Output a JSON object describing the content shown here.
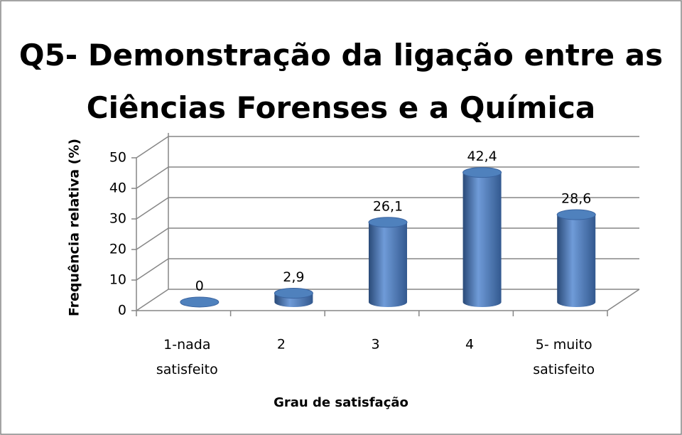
{
  "chart_data": {
    "type": "bar",
    "title": "Q5- Demonstração da ligação entre as\nCiências Forenses e a Química",
    "x_label": "Grau de satisfação",
    "y_label": "Frequência relativa (%)",
    "categories": [
      "1-nada\nsatisfeito",
      "2",
      "3",
      "4",
      "5- muito\nsatisfeito"
    ],
    "values": [
      0,
      2.9,
      26.1,
      42.4,
      28.6
    ],
    "value_labels": [
      "0",
      "2,9",
      "26,1",
      "42,4",
      "28,6"
    ],
    "color": "#4f81bd",
    "ylim": [
      0,
      50
    ],
    "yticks": [
      0,
      10,
      20,
      30,
      40,
      50
    ],
    "grid": true
  }
}
